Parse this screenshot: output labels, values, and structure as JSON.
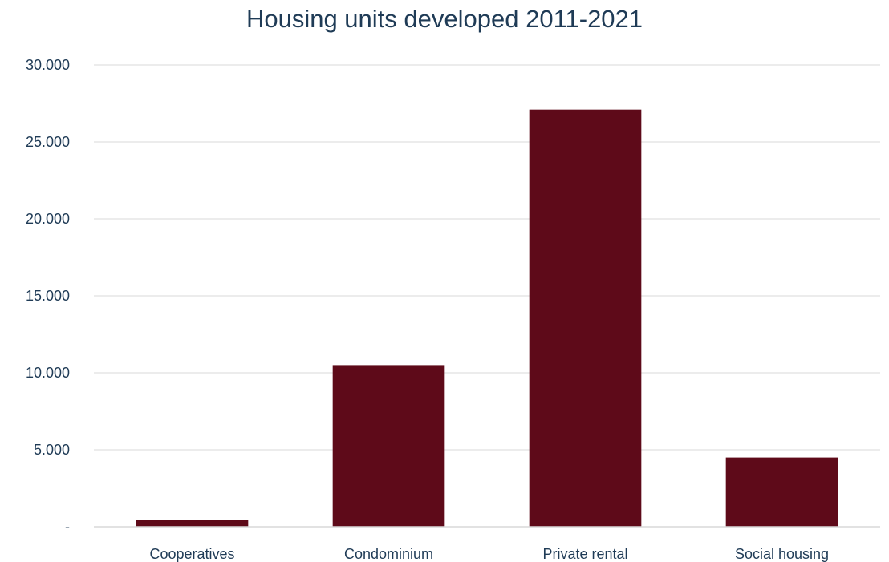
{
  "chart_data": {
    "type": "bar",
    "title": "Housing units developed 2011-2021",
    "xlabel": "",
    "ylabel": "",
    "categories": [
      "Cooperatives",
      "Condominium",
      "Private rental",
      "Social housing"
    ],
    "values": [
      450,
      10500,
      27100,
      4500
    ],
    "ylim": [
      0,
      30000
    ],
    "yticks": [
      0,
      5000,
      10000,
      15000,
      20000,
      25000,
      30000
    ],
    "ytick_labels": [
      "-",
      "5.000",
      "10.000",
      "15.000",
      "20.000",
      "25.000",
      "30.000"
    ],
    "grid": true,
    "legend": "none",
    "bar_color": "#5e0a19",
    "grid_color": "#e5e5e5",
    "text_color": "#1f3b56"
  }
}
